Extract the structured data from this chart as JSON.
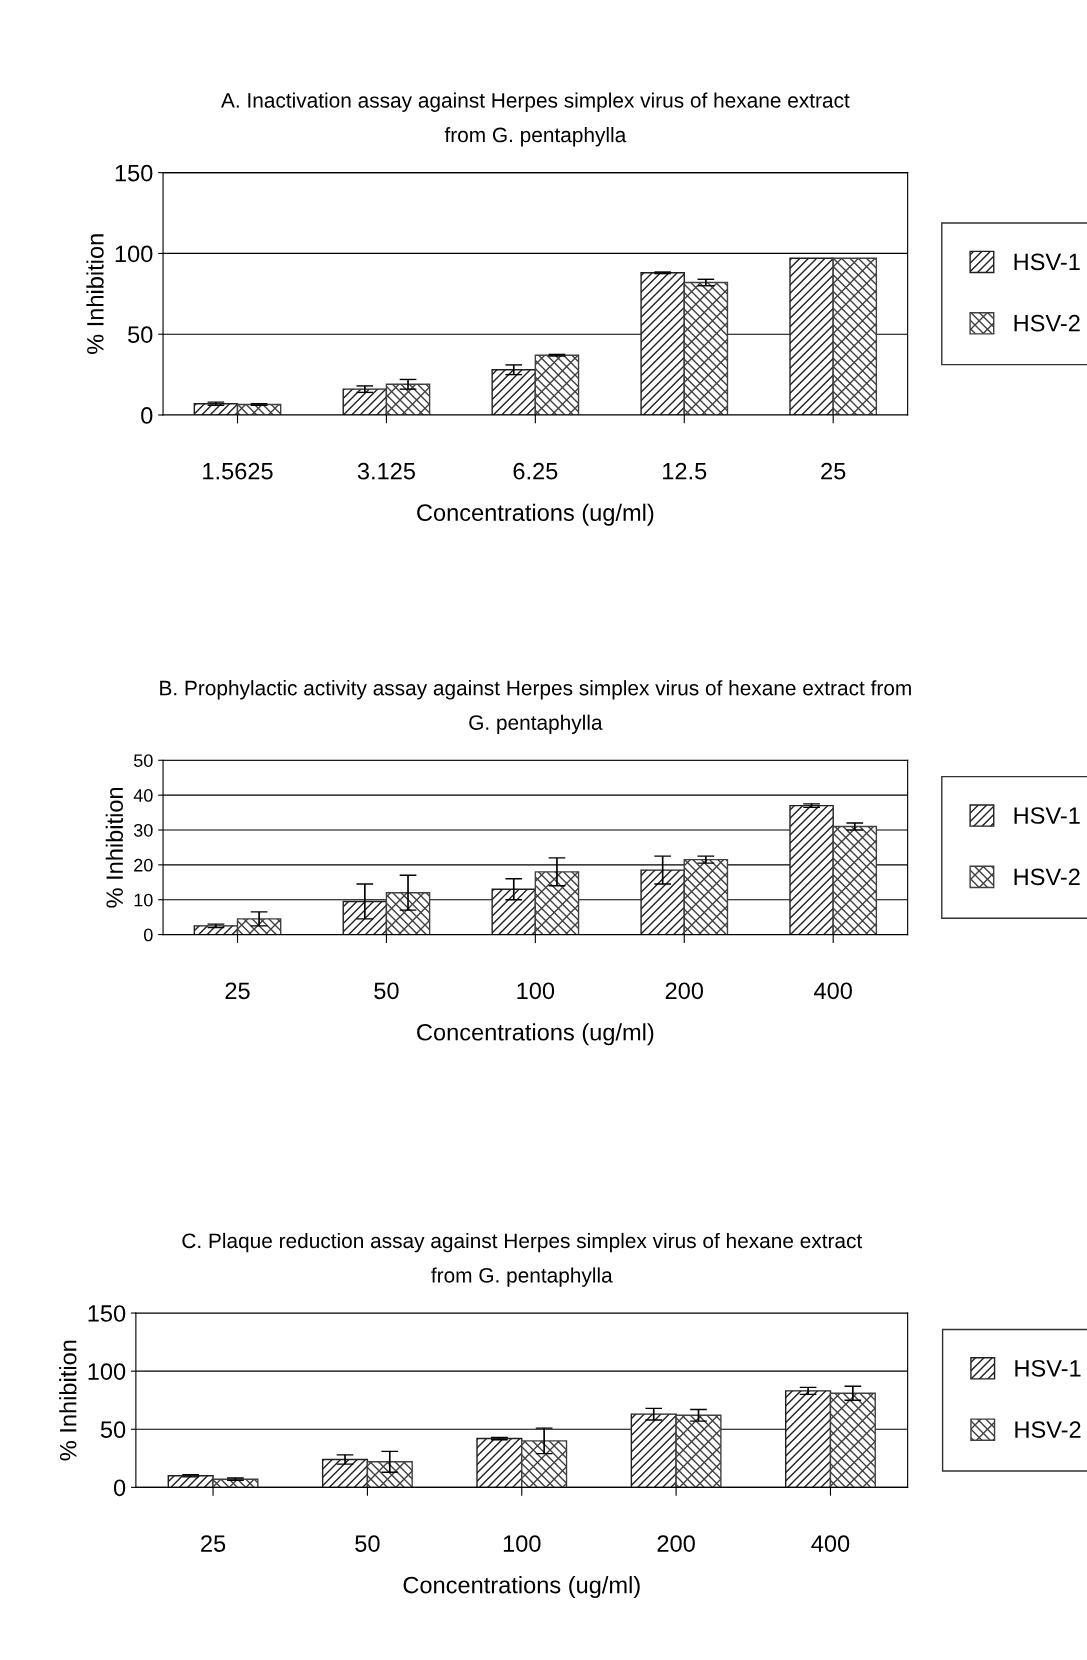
{
  "chart_data": [
    {
      "type": "bar",
      "title": "A. Inactivation assay against Herpes simplex virus of hexane extract\nfrom G. pentaphylla",
      "xlabel": "Concentrations (ug/ml)",
      "ylabel": "% Inhibition",
      "categories": [
        "1.5625",
        "3.125",
        "6.25",
        "12.5",
        "25"
      ],
      "ylim": [
        0,
        150
      ],
      "yticks": [
        0,
        50,
        100,
        150
      ],
      "grid": "y",
      "legend": "right",
      "series": [
        {
          "name": "HSV-1",
          "color": "#202020",
          "values": [
            7,
            16,
            28,
            88,
            97
          ],
          "errors": [
            1,
            2,
            3,
            0.5,
            null
          ]
        },
        {
          "name": "HSV-2",
          "color": "#404040",
          "values": [
            6.5,
            19,
            37,
            82,
            97
          ],
          "errors": [
            0.5,
            3,
            0.5,
            2,
            null
          ]
        }
      ]
    },
    {
      "type": "bar",
      "title": "B. Prophylactic activity assay against Herpes simplex virus of hexane extract from\nG. pentaphylla",
      "xlabel": "Concentrations (ug/ml)",
      "ylabel": "% Inhibition",
      "categories": [
        "25",
        "50",
        "100",
        "200",
        "400"
      ],
      "ylim": [
        0,
        50
      ],
      "yticks": [
        0,
        10,
        20,
        30,
        40,
        50
      ],
      "grid": "y",
      "legend": "right",
      "series": [
        {
          "name": "HSV-1",
          "color": "#202020",
          "values": [
            2.5,
            9.5,
            13,
            18.5,
            37
          ],
          "errors": [
            0.5,
            5,
            3,
            4,
            0.5
          ]
        },
        {
          "name": "HSV-2",
          "color": "#404040",
          "values": [
            4.5,
            12,
            18,
            21.5,
            31
          ],
          "errors": [
            2,
            5,
            4,
            1,
            1
          ]
        }
      ]
    },
    {
      "type": "bar",
      "title": "C. Plaque reduction assay against Herpes simplex virus of hexane extract\nfrom G. pentaphylla",
      "xlabel": "Concentrations (ug/ml)",
      "ylabel": "% Inhibition",
      "categories": [
        "25",
        "50",
        "100",
        "200",
        "400"
      ],
      "ylim": [
        0,
        150
      ],
      "yticks": [
        0,
        50,
        100,
        150
      ],
      "grid": "y",
      "legend": "right",
      "series": [
        {
          "name": "HSV-1",
          "color": "#202020",
          "values": [
            10,
            24,
            42,
            63,
            83
          ],
          "errors": [
            1,
            4,
            1,
            5,
            3
          ]
        },
        {
          "name": "HSV-2",
          "color": "#404040",
          "values": [
            7,
            22,
            40,
            62,
            81
          ],
          "errors": [
            1,
            9,
            11,
            5,
            6
          ]
        }
      ]
    }
  ]
}
